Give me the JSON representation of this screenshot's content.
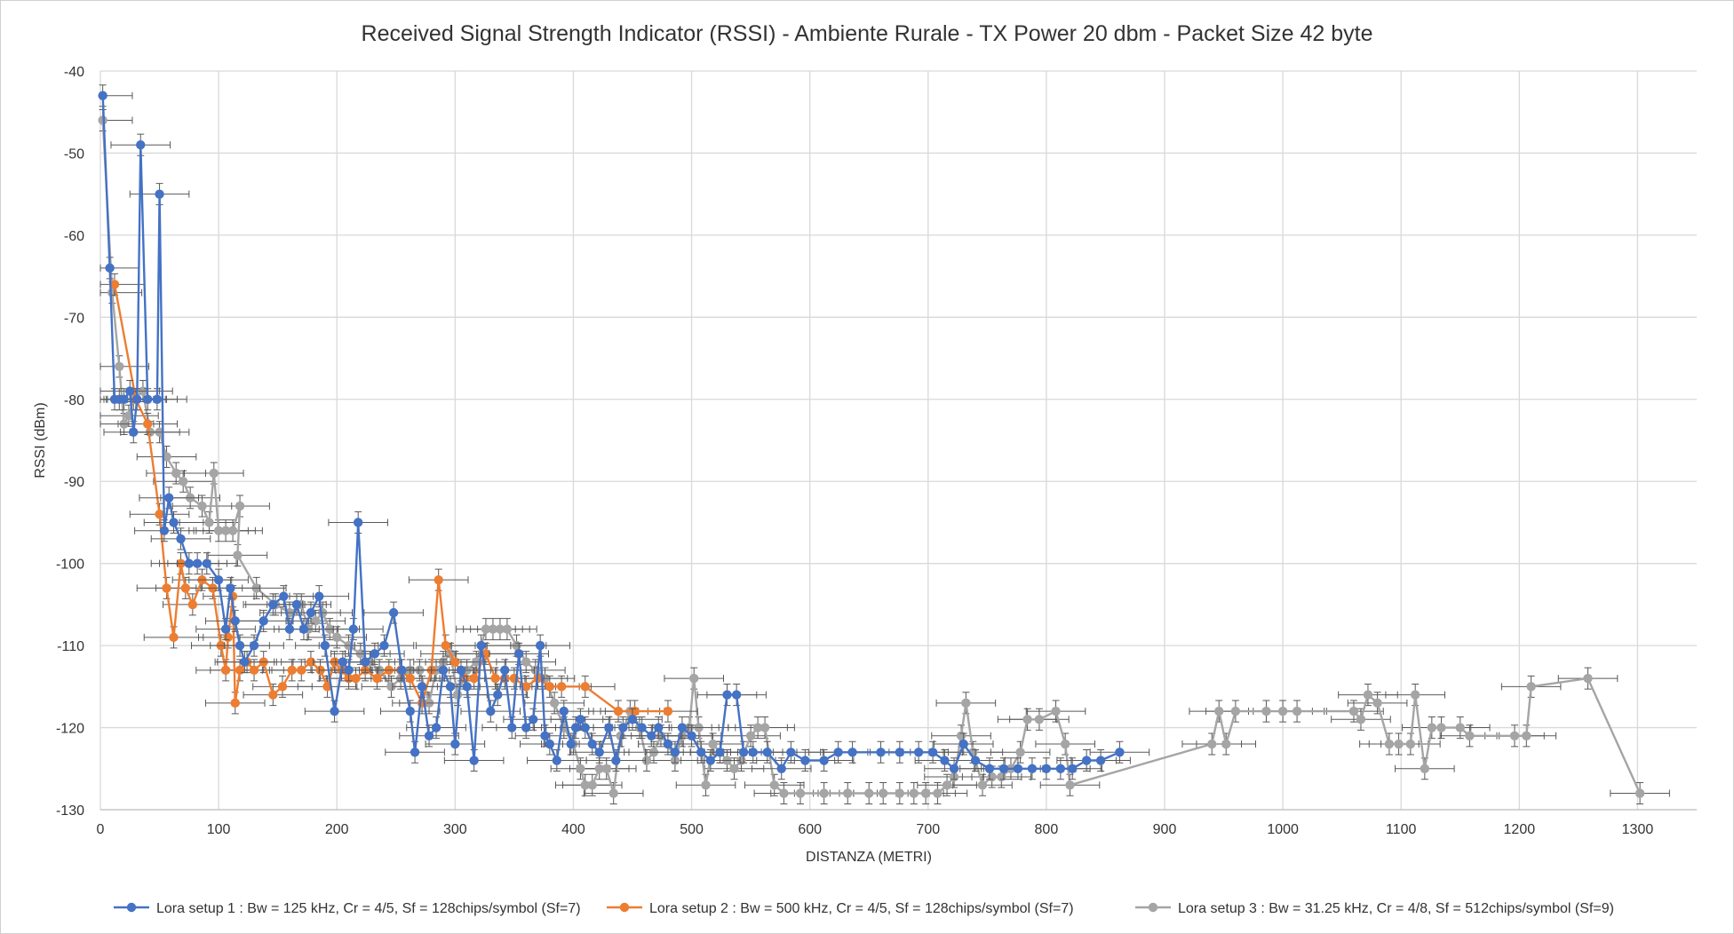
{
  "chart_data": {
    "type": "scatter",
    "title": "Received Signal Strength Indicator (RSSI) - Ambiente Rurale - TX Power 20 dbm - Packet Size 42 byte",
    "xlabel": "DISTANZA (METRI)",
    "ylabel": "RSSI (dBm)",
    "xlim": [
      0,
      1350
    ],
    "ylim": [
      -130,
      -40
    ],
    "x_ticks": [
      "0",
      "100",
      "200",
      "300",
      "400",
      "500",
      "600",
      "700",
      "800",
      "900",
      "1000",
      "1100",
      "1200",
      "1300"
    ],
    "y_ticks": [
      "-40",
      "-50",
      "-60",
      "-70",
      "-80",
      "-90",
      "-100",
      "-110",
      "-120",
      "-130"
    ],
    "grid": true,
    "legend_position": "bottom",
    "error_bars": {
      "x_half_width": 25,
      "y_half_width": 1.3
    },
    "series": [
      {
        "name": "Lora setup 1 : Bw = 125 kHz, Cr = 4/5, Sf = 128chips/symbol (Sf=7)",
        "color": "#4472C4",
        "points": [
          [
            2,
            -43
          ],
          [
            8,
            -64
          ],
          [
            12,
            -80
          ],
          [
            16,
            -80
          ],
          [
            20,
            -80
          ],
          [
            25,
            -79
          ],
          [
            28,
            -84
          ],
          [
            31,
            -80
          ],
          [
            34,
            -49
          ],
          [
            40,
            -80
          ],
          [
            48,
            -80
          ],
          [
            50,
            -55
          ],
          [
            54,
            -96
          ],
          [
            58,
            -92
          ],
          [
            62,
            -95
          ],
          [
            68,
            -97
          ],
          [
            75,
            -100
          ],
          [
            82,
            -100
          ],
          [
            90,
            -100
          ],
          [
            100,
            -102
          ],
          [
            106,
            -108
          ],
          [
            110,
            -103
          ],
          [
            114,
            -107
          ],
          [
            118,
            -110
          ],
          [
            122,
            -112
          ],
          [
            130,
            -110
          ],
          [
            138,
            -107
          ],
          [
            146,
            -105
          ],
          [
            155,
            -104
          ],
          [
            160,
            -108
          ],
          [
            166,
            -105
          ],
          [
            172,
            -108
          ],
          [
            178,
            -106
          ],
          [
            185,
            -104
          ],
          [
            190,
            -110
          ],
          [
            198,
            -118
          ],
          [
            205,
            -112
          ],
          [
            210,
            -113
          ],
          [
            214,
            -108
          ],
          [
            218,
            -95
          ],
          [
            224,
            -112
          ],
          [
            232,
            -111
          ],
          [
            240,
            -110
          ],
          [
            248,
            -106
          ],
          [
            255,
            -113
          ],
          [
            262,
            -118
          ],
          [
            266,
            -123
          ],
          [
            272,
            -115
          ],
          [
            278,
            -121
          ],
          [
            284,
            -120
          ],
          [
            290,
            -113
          ],
          [
            296,
            -115
          ],
          [
            300,
            -122
          ],
          [
            305,
            -113
          ],
          [
            310,
            -115
          ],
          [
            316,
            -124
          ],
          [
            322,
            -110
          ],
          [
            330,
            -118
          ],
          [
            336,
            -116
          ],
          [
            342,
            -113
          ],
          [
            348,
            -120
          ],
          [
            354,
            -111
          ],
          [
            360,
            -120
          ],
          [
            366,
            -119
          ],
          [
            372,
            -110
          ],
          [
            376,
            -121
          ],
          [
            380,
            -122
          ],
          [
            386,
            -124
          ],
          [
            392,
            -118
          ],
          [
            398,
            -122
          ],
          [
            402,
            -120
          ],
          [
            406,
            -119
          ],
          [
            410,
            -120
          ],
          [
            416,
            -122
          ],
          [
            422,
            -123
          ],
          [
            430,
            -120
          ],
          [
            436,
            -124
          ],
          [
            442,
            -120
          ],
          [
            450,
            -119
          ],
          [
            458,
            -120
          ],
          [
            466,
            -121
          ],
          [
            472,
            -120
          ],
          [
            480,
            -122
          ],
          [
            486,
            -123
          ],
          [
            492,
            -120
          ],
          [
            500,
            -121
          ],
          [
            508,
            -123
          ],
          [
            516,
            -124
          ],
          [
            524,
            -123
          ],
          [
            530,
            -116
          ],
          [
            538,
            -116
          ],
          [
            544,
            -123
          ],
          [
            552,
            -123
          ],
          [
            564,
            -123
          ],
          [
            576,
            -125
          ],
          [
            584,
            -123
          ],
          [
            596,
            -124
          ],
          [
            612,
            -124
          ],
          [
            624,
            -123
          ],
          [
            636,
            -123
          ],
          [
            660,
            -123
          ],
          [
            676,
            -123
          ],
          [
            692,
            -123
          ],
          [
            704,
            -123
          ],
          [
            714,
            -124
          ],
          [
            722,
            -125
          ],
          [
            730,
            -122
          ],
          [
            740,
            -124
          ],
          [
            752,
            -125
          ],
          [
            764,
            -125
          ],
          [
            776,
            -125
          ],
          [
            788,
            -125
          ],
          [
            800,
            -125
          ],
          [
            812,
            -125
          ],
          [
            822,
            -125
          ],
          [
            834,
            -124
          ],
          [
            846,
            -124
          ],
          [
            862,
            -123
          ]
        ]
      },
      {
        "name": "Lora setup 2 : Bw = 500 kHz, Cr = 4/5, Sf = 128chips/symbol (Sf=7)",
        "color": "#ED7D31",
        "points": [
          [
            12,
            -66
          ],
          [
            30,
            -80
          ],
          [
            40,
            -83
          ],
          [
            50,
            -94
          ],
          [
            56,
            -103
          ],
          [
            62,
            -109
          ],
          [
            68,
            -100
          ],
          [
            72,
            -103
          ],
          [
            78,
            -105
          ],
          [
            86,
            -102
          ],
          [
            95,
            -103
          ],
          [
            102,
            -110
          ],
          [
            106,
            -113
          ],
          [
            108,
            -109
          ],
          [
            112,
            -104
          ],
          [
            114,
            -117
          ],
          [
            118,
            -113
          ],
          [
            124,
            -112
          ],
          [
            130,
            -113
          ],
          [
            138,
            -112
          ],
          [
            146,
            -116
          ],
          [
            154,
            -115
          ],
          [
            162,
            -113
          ],
          [
            170,
            -113
          ],
          [
            178,
            -112
          ],
          [
            186,
            -113
          ],
          [
            192,
            -115
          ],
          [
            198,
            -112
          ],
          [
            204,
            -113
          ],
          [
            210,
            -114
          ],
          [
            216,
            -114
          ],
          [
            224,
            -113
          ],
          [
            234,
            -114
          ],
          [
            244,
            -113
          ],
          [
            254,
            -113
          ],
          [
            262,
            -114
          ],
          [
            272,
            -117
          ],
          [
            280,
            -113
          ],
          [
            286,
            -102
          ],
          [
            292,
            -110
          ],
          [
            300,
            -112
          ],
          [
            308,
            -114
          ],
          [
            316,
            -114
          ],
          [
            326,
            -111
          ],
          [
            334,
            -114
          ],
          [
            342,
            -114
          ],
          [
            350,
            -114
          ],
          [
            360,
            -115
          ],
          [
            370,
            -114
          ],
          [
            380,
            -115
          ],
          [
            390,
            -115
          ],
          [
            410,
            -115
          ],
          [
            438,
            -118
          ],
          [
            452,
            -118
          ],
          [
            480,
            -118
          ]
        ]
      },
      {
        "name": "Lora setup 3 : Bw = 31.25 kHz, Cr = 4/8, Sf = 512chips/symbol (Sf=9)",
        "color": "#A5A5A5",
        "points": [
          [
            2,
            -46
          ],
          [
            10,
            -67
          ],
          [
            16,
            -76
          ],
          [
            20,
            -83
          ],
          [
            24,
            -82
          ],
          [
            28,
            -80
          ],
          [
            36,
            -79
          ],
          [
            42,
            -84
          ],
          [
            50,
            -84
          ],
          [
            56,
            -87
          ],
          [
            64,
            -89
          ],
          [
            70,
            -90
          ],
          [
            76,
            -92
          ],
          [
            86,
            -93
          ],
          [
            92,
            -95
          ],
          [
            96,
            -89
          ],
          [
            100,
            -96
          ],
          [
            106,
            -96
          ],
          [
            112,
            -96
          ],
          [
            118,
            -93
          ],
          [
            116,
            -99
          ],
          [
            132,
            -103
          ],
          [
            148,
            -105
          ],
          [
            160,
            -106
          ],
          [
            170,
            -105
          ],
          [
            176,
            -108
          ],
          [
            182,
            -107
          ],
          [
            188,
            -106
          ],
          [
            194,
            -108
          ],
          [
            200,
            -109
          ],
          [
            210,
            -110
          ],
          [
            220,
            -111
          ],
          [
            228,
            -112
          ],
          [
            236,
            -113
          ],
          [
            246,
            -115
          ],
          [
            254,
            -114
          ],
          [
            262,
            -113
          ],
          [
            270,
            -113
          ],
          [
            278,
            -117
          ],
          [
            284,
            -113
          ],
          [
            290,
            -112
          ],
          [
            296,
            -111
          ],
          [
            302,
            -116
          ],
          [
            310,
            -113
          ],
          [
            318,
            -112
          ],
          [
            326,
            -108
          ],
          [
            332,
            -108
          ],
          [
            338,
            -108
          ],
          [
            344,
            -108
          ],
          [
            352,
            -110
          ],
          [
            360,
            -112
          ],
          [
            368,
            -113
          ],
          [
            376,
            -114
          ],
          [
            384,
            -117
          ],
          [
            392,
            -120
          ],
          [
            400,
            -122
          ],
          [
            406,
            -125
          ],
          [
            410,
            -127
          ],
          [
            416,
            -127
          ],
          [
            422,
            -125
          ],
          [
            428,
            -125
          ],
          [
            434,
            -128
          ],
          [
            440,
            -121
          ],
          [
            448,
            -118
          ],
          [
            456,
            -120
          ],
          [
            462,
            -124
          ],
          [
            468,
            -123
          ],
          [
            474,
            -121
          ],
          [
            480,
            -122
          ],
          [
            486,
            -124
          ],
          [
            492,
            -121
          ],
          [
            498,
            -120
          ],
          [
            502,
            -114
          ],
          [
            506,
            -120
          ],
          [
            512,
            -127
          ],
          [
            518,
            -122
          ],
          [
            524,
            -123
          ],
          [
            530,
            -124
          ],
          [
            536,
            -125
          ],
          [
            542,
            -124
          ],
          [
            550,
            -121
          ],
          [
            556,
            -120
          ],
          [
            562,
            -120
          ],
          [
            570,
            -127
          ],
          [
            578,
            -128
          ],
          [
            592,
            -128
          ],
          [
            612,
            -128
          ],
          [
            632,
            -128
          ],
          [
            650,
            -128
          ],
          [
            662,
            -128
          ],
          [
            676,
            -128
          ],
          [
            688,
            -128
          ],
          [
            698,
            -128
          ],
          [
            708,
            -128
          ],
          [
            716,
            -127
          ],
          [
            722,
            -126
          ],
          [
            728,
            -121
          ],
          [
            732,
            -117
          ],
          [
            738,
            -123
          ],
          [
            746,
            -127
          ],
          [
            754,
            -126
          ],
          [
            762,
            -126
          ],
          [
            770,
            -125
          ],
          [
            778,
            -123
          ],
          [
            784,
            -119
          ],
          [
            794,
            -119
          ],
          [
            808,
            -118
          ],
          [
            816,
            -122
          ],
          [
            820,
            -127
          ],
          [
            940,
            -122
          ],
          [
            946,
            -118
          ],
          [
            952,
            -122
          ],
          [
            960,
            -118
          ],
          [
            986,
            -118
          ],
          [
            1000,
            -118
          ],
          [
            1012,
            -118
          ],
          [
            1060,
            -118
          ],
          [
            1066,
            -119
          ],
          [
            1072,
            -116
          ],
          [
            1080,
            -117
          ],
          [
            1090,
            -122
          ],
          [
            1098,
            -122
          ],
          [
            1108,
            -122
          ],
          [
            1112,
            -116
          ],
          [
            1120,
            -125
          ],
          [
            1126,
            -120
          ],
          [
            1134,
            -120
          ],
          [
            1150,
            -120
          ],
          [
            1158,
            -121
          ],
          [
            1196,
            -121
          ],
          [
            1206,
            -121
          ],
          [
            1210,
            -115
          ],
          [
            1258,
            -114
          ],
          [
            1302,
            -128
          ]
        ]
      }
    ]
  }
}
